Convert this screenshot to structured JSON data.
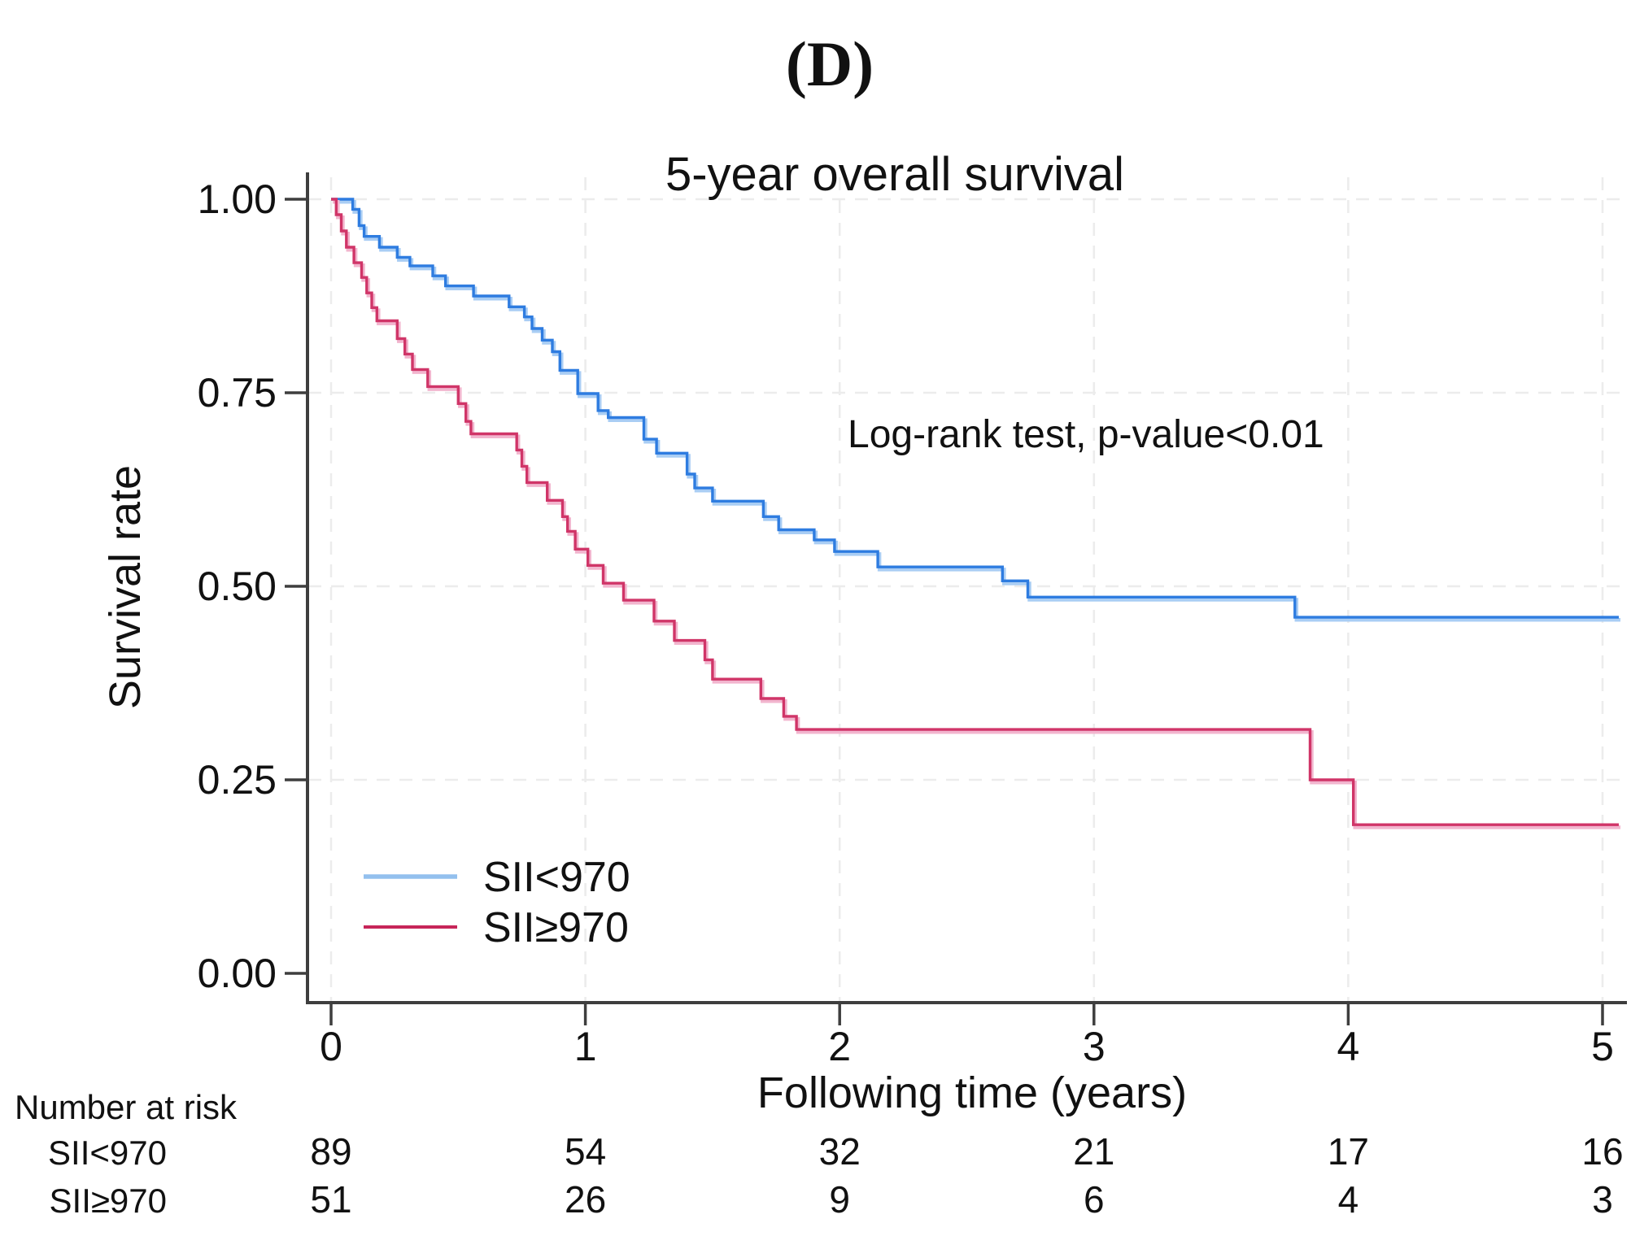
{
  "figure_label": "(D)",
  "palette": {
    "background": "#ffffff",
    "axis": "#3e3e3e",
    "gridline": "#ececec",
    "text": "#111111",
    "blue_main": "#2e7ce0",
    "blue_halo": "#a9cdf4",
    "blue_legend": "#93c0ee",
    "pink_main": "#d03568",
    "pink_halo": "#f2b5ce",
    "pink_legend": "#c72559"
  },
  "chart_data": {
    "type": "line",
    "subtype": "kaplan-meier-step",
    "title": "5-year overall survival",
    "xlabel": "Following time (years)",
    "ylabel": "Survival rate",
    "annotation": "Log-rank test, p-value<0.01",
    "xlim": [
      0,
      5.06
    ],
    "ylim": [
      0,
      1
    ],
    "grid": "dashed-light-on",
    "legend_position": "inside-lower-left",
    "x_ticks": {
      "values": [
        0,
        1,
        2,
        3,
        4,
        5
      ],
      "labels": [
        "0",
        "1",
        "2",
        "3",
        "4",
        "5"
      ]
    },
    "y_ticks": {
      "values": [
        0,
        0.25,
        0.5,
        0.75,
        1
      ],
      "labels": [
        "0.00",
        "0.25",
        "0.50",
        "0.75",
        "1.00"
      ]
    },
    "series": [
      {
        "name": "SII<970",
        "color": "#2e7ce0",
        "halo": "#a9cdf4",
        "legend_color": "#93c0ee",
        "points": [
          [
            0,
            1.0
          ],
          [
            0.085,
            0.987
          ],
          [
            0.11,
            0.966
          ],
          [
            0.13,
            0.952
          ],
          [
            0.19,
            0.938
          ],
          [
            0.26,
            0.925
          ],
          [
            0.31,
            0.914
          ],
          [
            0.4,
            0.901
          ],
          [
            0.45,
            0.888
          ],
          [
            0.56,
            0.875
          ],
          [
            0.7,
            0.861
          ],
          [
            0.76,
            0.848
          ],
          [
            0.79,
            0.833
          ],
          [
            0.83,
            0.818
          ],
          [
            0.87,
            0.803
          ],
          [
            0.9,
            0.779
          ],
          [
            0.97,
            0.749
          ],
          [
            1.05,
            0.727
          ],
          [
            1.09,
            0.718
          ],
          [
            1.23,
            0.69
          ],
          [
            1.28,
            0.672
          ],
          [
            1.4,
            0.645
          ],
          [
            1.43,
            0.627
          ],
          [
            1.5,
            0.61
          ],
          [
            1.7,
            0.59
          ],
          [
            1.76,
            0.573
          ],
          [
            1.9,
            0.56
          ],
          [
            1.98,
            0.545
          ],
          [
            2.15,
            0.525
          ],
          [
            2.64,
            0.507
          ],
          [
            2.74,
            0.486
          ],
          [
            3.79,
            0.46
          ]
        ]
      },
      {
        "name": "SII≥970",
        "color": "#d03568",
        "halo": "#f2b5ce",
        "legend_color": "#c72559",
        "points": [
          [
            0,
            1.0
          ],
          [
            0.02,
            0.98
          ],
          [
            0.04,
            0.959
          ],
          [
            0.06,
            0.938
          ],
          [
            0.09,
            0.918
          ],
          [
            0.12,
            0.899
          ],
          [
            0.14,
            0.879
          ],
          [
            0.16,
            0.86
          ],
          [
            0.18,
            0.843
          ],
          [
            0.26,
            0.82
          ],
          [
            0.29,
            0.8
          ],
          [
            0.32,
            0.78
          ],
          [
            0.38,
            0.758
          ],
          [
            0.5,
            0.736
          ],
          [
            0.53,
            0.713
          ],
          [
            0.55,
            0.697
          ],
          [
            0.73,
            0.676
          ],
          [
            0.75,
            0.655
          ],
          [
            0.77,
            0.634
          ],
          [
            0.85,
            0.611
          ],
          [
            0.91,
            0.59
          ],
          [
            0.93,
            0.571
          ],
          [
            0.96,
            0.548
          ],
          [
            1.01,
            0.527
          ],
          [
            1.07,
            0.504
          ],
          [
            1.15,
            0.482
          ],
          [
            1.27,
            0.455
          ],
          [
            1.35,
            0.43
          ],
          [
            1.47,
            0.405
          ],
          [
            1.5,
            0.38
          ],
          [
            1.69,
            0.355
          ],
          [
            1.78,
            0.332
          ],
          [
            1.83,
            0.315
          ],
          [
            3.85,
            0.25
          ],
          [
            4.02,
            0.192
          ]
        ]
      }
    ],
    "number_at_risk": {
      "header": "Number at risk",
      "time_points": [
        0,
        1,
        2,
        3,
        4,
        5
      ],
      "rows": [
        {
          "label": "SII<970",
          "counts": [
            "89",
            "54",
            "32",
            "21",
            "17",
            "16"
          ]
        },
        {
          "label": "SII≥970",
          "counts": [
            "51",
            "26",
            "9",
            "6",
            "4",
            "3"
          ]
        }
      ]
    }
  }
}
